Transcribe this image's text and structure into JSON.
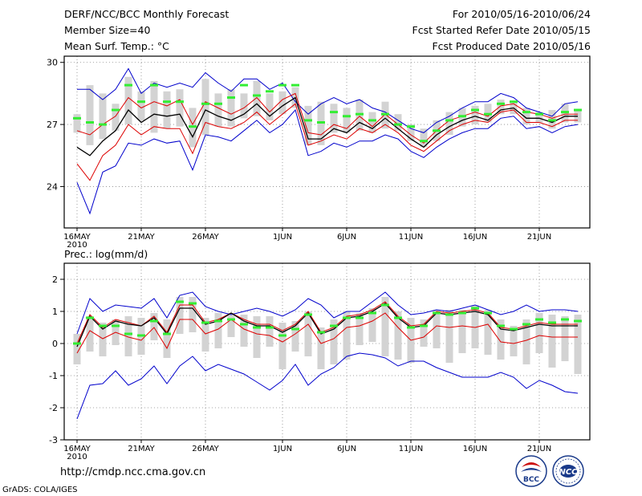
{
  "header": {
    "title": "DERF/NCC/BCC Monthly Forecast",
    "member_size": "Member Size=40",
    "variable": "Mean Surf. Temp.: °C",
    "period": "For 2010/05/16-2010/06/24",
    "started_refer": "Fcst Started Refer Date 2010/05/15",
    "produced": "Fcst Produced Date 2010/05/16"
  },
  "precip_label": "Prec.: log(mm/d)",
  "footer": {
    "url": "http://cmdp.ncc.cma.gov.cn",
    "credit": "GrADS: COLA/IGES",
    "logo_left_text": "BCC",
    "logo_right_text": "NCC"
  },
  "colors": {
    "ensemble_mean": "#000000",
    "spread": "#dd0000",
    "extremes": "#0000cc",
    "member_box": "#d3d3d3",
    "median": "#33ee33"
  },
  "chart_data": [
    {
      "type": "line",
      "title": "Mean Surf. Temp.: °C",
      "x_days": 40,
      "x_ticks": [
        {
          "day": 1,
          "label": "16MAY",
          "sublabel": "2010"
        },
        {
          "day": 6,
          "label": "21MAY"
        },
        {
          "day": 11,
          "label": "26MAY"
        },
        {
          "day": 17,
          "label": "1JUN"
        },
        {
          "day": 22,
          "label": "6JUN"
        },
        {
          "day": 27,
          "label": "11JUN"
        },
        {
          "day": 32,
          "label": "16JUN"
        },
        {
          "day": 37,
          "label": "21JUN"
        }
      ],
      "ylim": [
        22,
        30.3
      ],
      "y_ticks": [
        24,
        27,
        30
      ],
      "series": [
        {
          "name": "max",
          "role": "extremes",
          "values": [
            28.7,
            28.7,
            28.2,
            28.7,
            29.7,
            28.5,
            29.0,
            28.8,
            29.0,
            28.8,
            29.5,
            29.0,
            28.6,
            29.2,
            29.2,
            28.7,
            29.0,
            28.1,
            27.5,
            28.0,
            28.3,
            28.0,
            28.2,
            27.8,
            27.6,
            27.2,
            26.8,
            26.6,
            27.1,
            27.4,
            27.8,
            28.1,
            28.1,
            28.5,
            28.3,
            27.8,
            27.6,
            27.4,
            28.0,
            28.1
          ]
        },
        {
          "name": "upper",
          "role": "spread",
          "values": [
            26.7,
            26.5,
            27.0,
            27.4,
            28.3,
            27.8,
            28.1,
            27.9,
            28.2,
            27.0,
            28.1,
            27.8,
            27.5,
            27.8,
            28.3,
            27.6,
            28.2,
            28.5,
            26.6,
            26.5,
            27.0,
            26.8,
            27.4,
            26.9,
            27.5,
            27.0,
            26.5,
            26.1,
            26.7,
            27.2,
            27.4,
            27.6,
            27.4,
            27.9,
            28.0,
            27.6,
            27.5,
            27.3,
            27.5,
            27.5
          ]
        },
        {
          "name": "mean",
          "role": "ensemble_mean",
          "values": [
            25.9,
            25.5,
            26.2,
            26.7,
            27.7,
            27.1,
            27.5,
            27.4,
            27.5,
            26.4,
            27.7,
            27.4,
            27.2,
            27.5,
            28.0,
            27.4,
            27.9,
            28.3,
            26.3,
            26.3,
            26.8,
            26.6,
            27.1,
            26.8,
            27.3,
            26.8,
            26.3,
            25.9,
            26.5,
            26.9,
            27.2,
            27.4,
            27.2,
            27.7,
            27.8,
            27.3,
            27.3,
            27.1,
            27.4,
            27.4
          ]
        },
        {
          "name": "lower",
          "role": "spread",
          "values": [
            25.1,
            24.3,
            25.5,
            26.0,
            27.0,
            26.5,
            26.9,
            26.8,
            26.8,
            25.6,
            27.1,
            26.9,
            26.8,
            27.1,
            27.6,
            27.0,
            27.5,
            28.0,
            26.0,
            26.2,
            26.5,
            26.3,
            26.8,
            26.6,
            27.0,
            26.6,
            26.0,
            25.7,
            26.2,
            26.7,
            27.0,
            27.2,
            27.1,
            27.6,
            27.7,
            27.1,
            27.1,
            26.9,
            27.2,
            27.2
          ]
        },
        {
          "name": "min",
          "role": "extremes",
          "values": [
            24.2,
            22.7,
            24.7,
            25.0,
            26.1,
            26.0,
            26.3,
            26.1,
            26.2,
            24.8,
            26.5,
            26.4,
            26.2,
            26.7,
            27.2,
            26.6,
            27.0,
            27.7,
            25.5,
            25.7,
            26.1,
            25.9,
            26.2,
            26.2,
            26.5,
            26.3,
            25.7,
            25.4,
            25.9,
            26.3,
            26.6,
            26.8,
            26.8,
            27.3,
            27.4,
            26.8,
            26.9,
            26.6,
            26.9,
            27.0
          ]
        }
      ],
      "member_boxes": [
        [
          26.6,
          27.5
        ],
        [
          26.0,
          28.9
        ],
        [
          26.3,
          28.5
        ],
        [
          26.7,
          28.0
        ],
        [
          27.0,
          29.3
        ],
        [
          27.2,
          28.6
        ],
        [
          26.6,
          29.1
        ],
        [
          26.8,
          28.6
        ],
        [
          26.9,
          28.7
        ],
        [
          25.9,
          27.8
        ],
        [
          26.5,
          29.2
        ],
        [
          26.9,
          28.5
        ],
        [
          26.9,
          28.7
        ],
        [
          27.3,
          28.5
        ],
        [
          27.4,
          29.1
        ],
        [
          27.2,
          28.5
        ],
        [
          27.5,
          28.6
        ],
        [
          27.8,
          28.8
        ],
        [
          26.0,
          27.9
        ],
        [
          26.0,
          28.1
        ],
        [
          26.6,
          28.0
        ],
        [
          26.6,
          27.8
        ],
        [
          26.7,
          28.2
        ],
        [
          26.6,
          27.6
        ],
        [
          26.8,
          28.1
        ],
        [
          26.7,
          27.5
        ],
        [
          26.2,
          27.0
        ],
        [
          25.9,
          26.8
        ],
        [
          26.2,
          27.2
        ],
        [
          26.5,
          27.6
        ],
        [
          26.9,
          27.8
        ],
        [
          27.0,
          27.9
        ],
        [
          27.1,
          28.0
        ],
        [
          27.5,
          28.2
        ],
        [
          27.5,
          28.1
        ],
        [
          27.0,
          27.8
        ],
        [
          27.1,
          27.6
        ],
        [
          26.8,
          27.7
        ],
        [
          27.1,
          28.0
        ],
        [
          27.1,
          27.7
        ]
      ],
      "median_marks": [
        27.3,
        27.1,
        27.0,
        27.7,
        28.9,
        28.1,
        28.9,
        28.1,
        28.1,
        26.9,
        28.0,
        28.0,
        28.3,
        28.9,
        28.4,
        28.6,
        28.9,
        28.9,
        27.2,
        27.1,
        27.6,
        27.4,
        27.5,
        27.2,
        27.5,
        27.0,
        26.9,
        26.2,
        26.7,
        27.2,
        27.4,
        27.7,
        27.5,
        28.0,
        28.1,
        27.6,
        27.5,
        27.2,
        27.6,
        27.7
      ]
    },
    {
      "type": "line",
      "title": "Prec.: log(mm/d)",
      "x_days": 40,
      "x_ticks": [
        {
          "day": 1,
          "label": "16MAY",
          "sublabel": "2010"
        },
        {
          "day": 6,
          "label": "21MAY"
        },
        {
          "day": 11,
          "label": "26MAY"
        },
        {
          "day": 17,
          "label": "1JUN"
        },
        {
          "day": 22,
          "label": "6JUN"
        },
        {
          "day": 27,
          "label": "11JUN"
        },
        {
          "day": 32,
          "label": "16JUN"
        },
        {
          "day": 37,
          "label": "21JUN"
        }
      ],
      "ylim": [
        -3,
        2.5
      ],
      "y_ticks": [
        -3,
        -2,
        -1,
        0,
        1,
        2
      ],
      "series": [
        {
          "name": "max",
          "role": "extremes",
          "values": [
            0.3,
            1.4,
            1.0,
            1.2,
            1.15,
            1.1,
            1.4,
            0.8,
            1.5,
            1.6,
            1.15,
            1.0,
            0.9,
            1.0,
            1.1,
            1.0,
            0.85,
            1.05,
            1.4,
            1.2,
            0.8,
            1.0,
            1.0,
            1.3,
            1.6,
            1.2,
            0.9,
            0.95,
            1.05,
            1.0,
            1.1,
            1.2,
            1.05,
            0.9,
            1.0,
            1.2,
            1.0,
            1.05,
            1.05,
            1.0
          ]
        },
        {
          "name": "upper",
          "role": "spread",
          "values": [
            0.0,
            0.9,
            0.5,
            0.75,
            0.65,
            0.55,
            0.85,
            0.35,
            1.2,
            1.2,
            0.65,
            0.75,
            0.95,
            0.75,
            0.6,
            0.6,
            0.4,
            0.6,
            1.0,
            0.35,
            0.5,
            0.85,
            0.9,
            1.05,
            1.3,
            0.85,
            0.55,
            0.6,
            1.0,
            0.95,
            1.0,
            1.05,
            0.95,
            0.5,
            0.45,
            0.55,
            0.65,
            0.6,
            0.6,
            0.6
          ]
        },
        {
          "name": "mean",
          "role": "ensemble_mean",
          "values": [
            -0.1,
            0.85,
            0.45,
            0.7,
            0.6,
            0.55,
            0.8,
            0.3,
            1.1,
            1.1,
            0.6,
            0.7,
            0.95,
            0.7,
            0.55,
            0.55,
            0.35,
            0.55,
            0.95,
            0.3,
            0.45,
            0.8,
            0.85,
            1.0,
            1.25,
            0.8,
            0.5,
            0.55,
            0.95,
            0.9,
            0.95,
            1.0,
            0.9,
            0.45,
            0.4,
            0.5,
            0.6,
            0.55,
            0.55,
            0.55
          ]
        },
        {
          "name": "lower",
          "role": "spread",
          "values": [
            -0.3,
            0.4,
            0.15,
            0.35,
            0.2,
            0.1,
            0.5,
            -0.15,
            0.75,
            0.75,
            0.3,
            0.45,
            0.75,
            0.45,
            0.3,
            0.25,
            0.05,
            0.3,
            0.6,
            0.0,
            0.15,
            0.5,
            0.55,
            0.7,
            0.95,
            0.5,
            0.1,
            0.2,
            0.55,
            0.5,
            0.55,
            0.5,
            0.6,
            0.05,
            0.0,
            0.1,
            0.25,
            0.2,
            0.2,
            0.2
          ]
        },
        {
          "name": "min",
          "role": "extremes",
          "values": [
            -2.35,
            -1.3,
            -1.25,
            -0.85,
            -1.3,
            -1.1,
            -0.7,
            -1.25,
            -0.7,
            -0.4,
            -0.85,
            -0.65,
            -0.8,
            -0.95,
            -1.2,
            -1.45,
            -1.15,
            -0.65,
            -1.3,
            -0.95,
            -0.75,
            -0.4,
            -0.3,
            -0.35,
            -0.45,
            -0.7,
            -0.55,
            -0.55,
            -0.75,
            -0.9,
            -1.05,
            -1.05,
            -1.05,
            -0.9,
            -1.05,
            -1.4,
            -1.15,
            -1.3,
            -1.5,
            -1.55
          ]
        }
      ],
      "member_boxes": [
        [
          -0.65,
          0.3
        ],
        [
          -0.25,
          0.85
        ],
        [
          -0.4,
          0.65
        ],
        [
          -0.05,
          0.75
        ],
        [
          -0.4,
          0.85
        ],
        [
          -0.35,
          0.8
        ],
        [
          0.1,
          0.95
        ],
        [
          -0.45,
          0.75
        ],
        [
          0.3,
          1.45
        ],
        [
          0.35,
          1.45
        ],
        [
          -0.25,
          0.8
        ],
        [
          -0.15,
          0.95
        ],
        [
          0.2,
          0.95
        ],
        [
          -0.1,
          0.9
        ],
        [
          -0.45,
          0.85
        ],
        [
          -0.1,
          0.85
        ],
        [
          -0.8,
          0.65
        ],
        [
          -0.25,
          0.7
        ],
        [
          -0.4,
          1.0
        ],
        [
          -0.8,
          0.5
        ],
        [
          -0.65,
          0.75
        ],
        [
          -0.5,
          1.0
        ],
        [
          -0.05,
          0.95
        ],
        [
          0.05,
          1.1
        ],
        [
          -0.4,
          1.45
        ],
        [
          -0.5,
          1.0
        ],
        [
          -0.6,
          0.8
        ],
        [
          -0.1,
          0.75
        ],
        [
          -0.15,
          1.05
        ],
        [
          -0.6,
          1.05
        ],
        [
          -0.3,
          1.05
        ],
        [
          -0.15,
          1.2
        ],
        [
          -0.35,
          1.05
        ],
        [
          -0.5,
          0.75
        ],
        [
          -0.4,
          0.55
        ],
        [
          -0.65,
          0.75
        ],
        [
          -0.3,
          0.95
        ],
        [
          -0.75,
          0.9
        ],
        [
          -0.55,
          0.85
        ],
        [
          -0.95,
          0.9
        ]
      ],
      "median_marks": [
        0.0,
        0.8,
        0.55,
        0.55,
        0.3,
        0.25,
        0.7,
        0.3,
        1.3,
        1.25,
        0.65,
        0.7,
        0.75,
        0.6,
        0.5,
        0.5,
        0.25,
        0.45,
        0.9,
        0.35,
        0.55,
        0.8,
        0.8,
        0.95,
        1.2,
        0.8,
        0.5,
        0.55,
        0.95,
        0.9,
        0.95,
        1.1,
        0.95,
        0.55,
        0.45,
        0.6,
        0.75,
        0.65,
        0.75,
        0.7
      ]
    }
  ]
}
